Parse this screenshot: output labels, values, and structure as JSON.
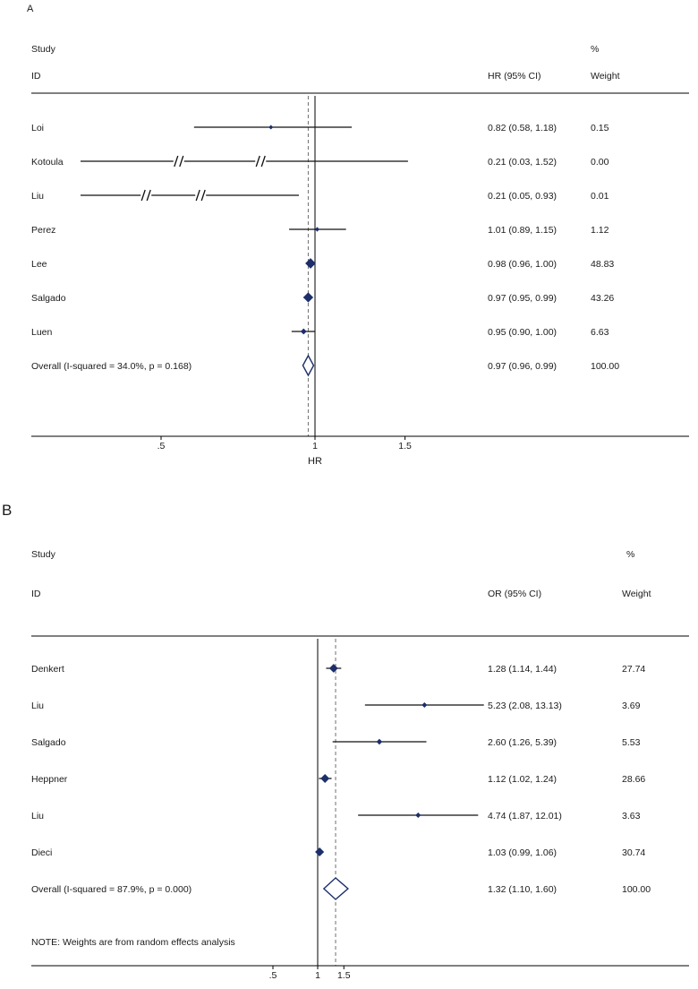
{
  "chart_data": [
    {
      "type": "forest",
      "panel_label": "A",
      "headers": {
        "study": "Study",
        "id": "ID",
        "effect": "HR (95% CI)",
        "percent": "%",
        "weight": "Weight"
      },
      "xlabel": "HR",
      "x_scale": "log",
      "x_tick_values": [
        0.5,
        1,
        1.5
      ],
      "x_tick_labels": [
        ".5",
        "1",
        "1.5"
      ],
      "ref_value": 1,
      "overall_line_value": 0.97,
      "studies": [
        {
          "id": "Loi",
          "est": 0.82,
          "lo": 0.58,
          "hi": 1.18,
          "effect_label": "0.82 (0.58, 1.18)",
          "weight": 0.15,
          "weight_label": "0.15",
          "clipped": false
        },
        {
          "id": "Kotoula",
          "est": 0.21,
          "lo": 0.03,
          "hi": 1.52,
          "effect_label": "0.21 (0.03, 1.52)",
          "weight": 0.0,
          "weight_label": "0.00",
          "clipped": true
        },
        {
          "id": "Liu",
          "est": 0.21,
          "lo": 0.05,
          "hi": 0.93,
          "effect_label": "0.21 (0.05, 0.93)",
          "weight": 0.01,
          "weight_label": "0.01",
          "clipped": true
        },
        {
          "id": "Perez",
          "est": 1.01,
          "lo": 0.89,
          "hi": 1.15,
          "effect_label": "1.01 (0.89, 1.15)",
          "weight": 1.12,
          "weight_label": "1.12",
          "clipped": false
        },
        {
          "id": "Lee",
          "est": 0.98,
          "lo": 0.96,
          "hi": 1.0,
          "effect_label": "0.98 (0.96, 1.00)",
          "weight": 48.83,
          "weight_label": "48.83",
          "clipped": false
        },
        {
          "id": "Salgado",
          "est": 0.97,
          "lo": 0.95,
          "hi": 0.99,
          "effect_label": "0.97 (0.95, 0.99)",
          "weight": 43.26,
          "weight_label": "43.26",
          "clipped": false
        },
        {
          "id": "Luen",
          "est": 0.95,
          "lo": 0.9,
          "hi": 1.0,
          "effect_label": "0.95 (0.90, 1.00)",
          "weight": 6.63,
          "weight_label": "6.63",
          "clipped": false
        }
      ],
      "overall": {
        "id": "Overall  (I-squared = 34.0%, p = 0.168)",
        "est": 0.97,
        "lo": 0.96,
        "hi": 0.99,
        "effect_label": "0.97 (0.96, 0.99)",
        "weight_label": "100.00"
      },
      "note": null
    },
    {
      "type": "forest",
      "panel_label": "B",
      "headers": {
        "study": "Study",
        "id": "ID",
        "effect": "OR (95% CI)",
        "percent": "%",
        "weight": "Weight"
      },
      "xlabel": "",
      "x_scale": "log",
      "x_tick_values": [
        0.5,
        1,
        1.5
      ],
      "x_tick_labels": [
        ".5",
        "1",
        "1.5"
      ],
      "ref_value": 1,
      "overall_line_value": 1.32,
      "studies": [
        {
          "id": "Denkert",
          "est": 1.28,
          "lo": 1.14,
          "hi": 1.44,
          "effect_label": "1.28 (1.14, 1.44)",
          "weight": 27.74,
          "weight_label": "27.74",
          "clipped": false
        },
        {
          "id": "Liu",
          "est": 5.23,
          "lo": 2.08,
          "hi": 13.13,
          "effect_label": "5.23 (2.08, 13.13)",
          "weight": 3.69,
          "weight_label": "3.69",
          "clipped": false
        },
        {
          "id": "Salgado",
          "est": 2.6,
          "lo": 1.26,
          "hi": 5.39,
          "effect_label": "2.60 (1.26, 5.39)",
          "weight": 5.53,
          "weight_label": "5.53",
          "clipped": false
        },
        {
          "id": "Heppner",
          "est": 1.12,
          "lo": 1.02,
          "hi": 1.24,
          "effect_label": "1.12 (1.02, 1.24)",
          "weight": 28.66,
          "weight_label": "28.66",
          "clipped": false
        },
        {
          "id": "Liu",
          "est": 4.74,
          "lo": 1.87,
          "hi": 12.01,
          "effect_label": "4.74 (1.87, 12.01)",
          "weight": 3.63,
          "weight_label": "3.63",
          "clipped": false
        },
        {
          "id": "Dieci",
          "est": 1.03,
          "lo": 0.99,
          "hi": 1.06,
          "effect_label": "1.03 (0.99, 1.06)",
          "weight": 30.74,
          "weight_label": "30.74",
          "clipped": false
        }
      ],
      "overall": {
        "id": "Overall  (I-squared = 87.9%, p = 0.000)",
        "est": 1.32,
        "lo": 1.1,
        "hi": 1.6,
        "effect_label": "1.32 (1.10, 1.60)",
        "weight_label": "100.00"
      },
      "note": "NOTE: Weights are from random effects analysis"
    }
  ]
}
